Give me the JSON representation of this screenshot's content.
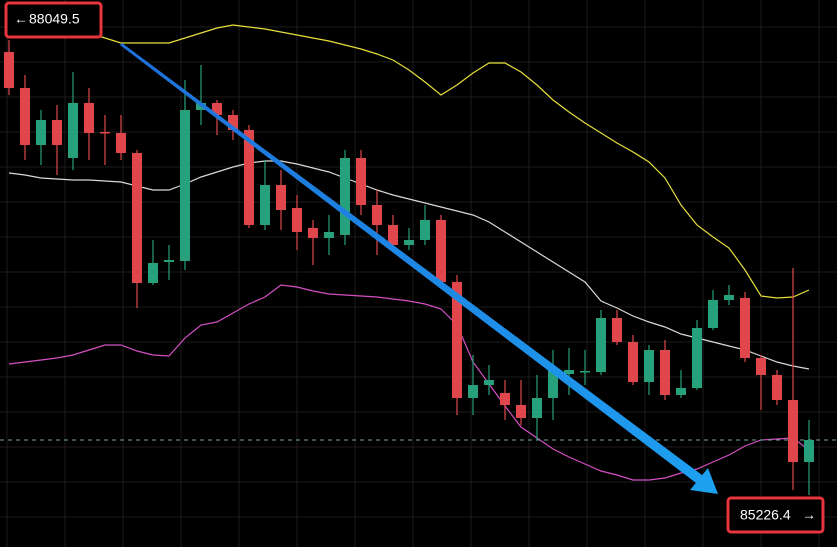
{
  "chart_data": {
    "type": "candlestick",
    "ylim": [
      84868,
      88150
    ],
    "grid": true,
    "up_color": "#26a17b",
    "down_color": "#e0474c",
    "open": [
      87838,
      87622,
      87280,
      87430,
      87202,
      87532,
      87358,
      87352,
      87232,
      86452,
      86578,
      86584,
      87490,
      87532,
      87460,
      87370,
      86800,
      87040,
      86902,
      86782,
      86722,
      86740,
      87202,
      86920,
      86800,
      86680,
      86710,
      86830,
      86458,
      85762,
      85840,
      85792,
      85720,
      85642,
      85762,
      85906,
      85918,
      85918,
      86242,
      86098,
      85858,
      86050,
      85780,
      85822,
      86182,
      86350,
      86362,
      86002,
      85900,
      85750,
      85378
    ],
    "high": [
      87910,
      87700,
      87490,
      87520,
      87718,
      87622,
      87460,
      87460,
      87250,
      86710,
      86680,
      87670,
      87760,
      87550,
      87490,
      87400,
      87190,
      87130,
      86980,
      86830,
      86860,
      87250,
      87250,
      87010,
      86860,
      86782,
      86920,
      86860,
      86500,
      86020,
      85960,
      85870,
      85870,
      85900,
      86050,
      86062,
      86050,
      86290,
      86290,
      86140,
      86080,
      86110,
      85930,
      86230,
      86410,
      86440,
      86398,
      86020,
      85930,
      86542,
      85630
    ],
    "low": [
      87580,
      87190,
      87160,
      87100,
      87130,
      87190,
      87160,
      87190,
      86302,
      86440,
      86470,
      86530,
      87400,
      87340,
      87310,
      86782,
      86770,
      86770,
      86650,
      86560,
      86620,
      86680,
      86860,
      86620,
      86650,
      86650,
      86680,
      86440,
      85660,
      85660,
      85780,
      85630,
      85600,
      85510,
      85630,
      85780,
      85840,
      85900,
      86080,
      85840,
      85780,
      85750,
      85762,
      85810,
      86170,
      86320,
      85978,
      85690,
      85720,
      85210,
      85180
    ],
    "close": [
      87622,
      87280,
      87430,
      87280,
      87532,
      87352,
      87352,
      87232,
      86452,
      86572,
      86590,
      87490,
      87532,
      87460,
      87370,
      86800,
      87040,
      86890,
      86758,
      86722,
      86758,
      87202,
      86920,
      86800,
      86680,
      86710,
      86830,
      86458,
      85762,
      85840,
      85870,
      85720,
      85642,
      85762,
      85930,
      85930,
      85924,
      86242,
      86098,
      85858,
      86050,
      85780,
      85822,
      86182,
      86350,
      86380,
      86002,
      85900,
      85750,
      85378,
      85510
    ],
    "bands": [
      {
        "color": "#e6df3c",
        "values": [
          88120,
          88078,
          88042,
          88012,
          87982,
          87952,
          87922,
          87892,
          87892,
          87892,
          87892,
          87922,
          87952,
          87982,
          88000,
          87988,
          87976,
          87958,
          87940,
          87922,
          87904,
          87880,
          87856,
          87826,
          87790,
          87730,
          87658,
          87580,
          87640,
          87712,
          87772,
          87772,
          87718,
          87640,
          87550,
          87478,
          87412,
          87352,
          87292,
          87238,
          87178,
          87082,
          86920,
          86800,
          86728,
          86662,
          86530,
          86374,
          86362,
          86368,
          86410
        ]
      },
      {
        "color": "#d9d9d9",
        "values": [
          87112,
          87100,
          87082,
          87076,
          87070,
          87070,
          87064,
          87058,
          87034,
          87010,
          87010,
          87046,
          87088,
          87118,
          87148,
          87172,
          87184,
          87184,
          87166,
          87142,
          87118,
          87082,
          87046,
          87010,
          86980,
          86956,
          86932,
          86908,
          86884,
          86860,
          86818,
          86758,
          86698,
          86638,
          86578,
          86518,
          86458,
          86344,
          86302,
          86254,
          86218,
          86188,
          86146,
          86122,
          86098,
          86074,
          86050,
          86014,
          85978,
          85954,
          85936
        ]
      },
      {
        "color": "#d44fc4",
        "values": [
          85966,
          85978,
          85990,
          86002,
          86020,
          86050,
          86080,
          86080,
          86044,
          86020,
          86014,
          86122,
          86200,
          86218,
          86272,
          86326,
          86368,
          86440,
          86428,
          86404,
          86386,
          86380,
          86374,
          86368,
          86356,
          86344,
          86326,
          86296,
          86200,
          85978,
          85846,
          85714,
          85588,
          85522,
          85456,
          85408,
          85366,
          85324,
          85300,
          85270,
          85270,
          85282,
          85312,
          85336,
          85378,
          85420,
          85474,
          85510,
          85516,
          85522,
          85450
        ]
      }
    ],
    "max_label": 88049.5,
    "min_label": 85226.4
  }
}
